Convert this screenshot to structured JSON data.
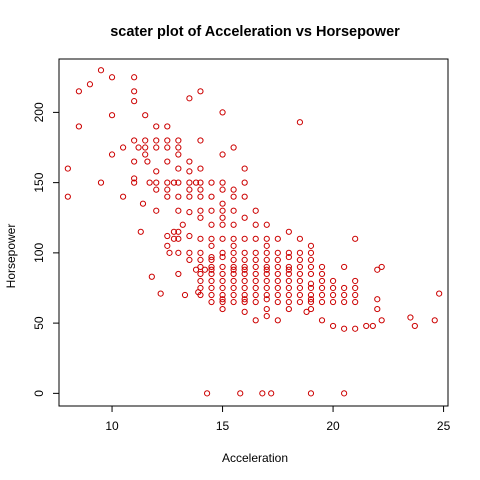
{
  "chart_data": {
    "type": "scatter",
    "title": "scater plot of Acceleration vs Horsepower",
    "xlabel": "Acceleration",
    "ylabel": "Horsepower",
    "xlim": [
      7.6,
      25.2
    ],
    "ylim": [
      -9,
      238
    ],
    "xticks": [
      10,
      15,
      20,
      25
    ],
    "yticks": [
      0,
      50,
      100,
      150,
      200
    ],
    "grid": false,
    "legend": "none",
    "point_color": "#cc0000",
    "series": [
      {
        "points": [
          [
            8,
            160
          ],
          [
            8,
            140
          ],
          [
            8.5,
            215
          ],
          [
            8.5,
            190
          ],
          [
            9,
            220
          ],
          [
            9.5,
            230
          ],
          [
            9.5,
            150
          ],
          [
            10,
            225
          ],
          [
            10,
            198
          ],
          [
            10,
            170
          ],
          [
            10.5,
            175
          ],
          [
            10.5,
            140
          ],
          [
            11,
            225
          ],
          [
            11,
            215
          ],
          [
            11,
            208
          ],
          [
            11,
            180
          ],
          [
            11,
            165
          ],
          [
            11,
            153
          ],
          [
            11,
            150
          ],
          [
            11.2,
            175
          ],
          [
            11.3,
            115
          ],
          [
            11.4,
            135
          ],
          [
            11.5,
            198
          ],
          [
            11.5,
            180
          ],
          [
            11.5,
            175
          ],
          [
            11.5,
            170
          ],
          [
            11.6,
            165
          ],
          [
            11.7,
            150
          ],
          [
            11.8,
            83
          ],
          [
            12,
            190
          ],
          [
            12,
            180
          ],
          [
            12,
            175
          ],
          [
            12,
            158
          ],
          [
            12,
            150
          ],
          [
            12,
            145
          ],
          [
            12,
            130
          ],
          [
            12.2,
            71
          ],
          [
            12.5,
            190
          ],
          [
            12.5,
            180
          ],
          [
            12.5,
            175
          ],
          [
            12.5,
            165
          ],
          [
            12.5,
            150
          ],
          [
            12.5,
            145
          ],
          [
            12.5,
            140
          ],
          [
            12.5,
            112
          ],
          [
            12.5,
            105
          ],
          [
            12.6,
            100
          ],
          [
            12.8,
            150
          ],
          [
            12.8,
            115
          ],
          [
            12.8,
            110
          ],
          [
            13,
            180
          ],
          [
            13,
            175
          ],
          [
            13,
            170
          ],
          [
            13,
            160
          ],
          [
            13,
            150
          ],
          [
            13,
            140
          ],
          [
            13,
            130
          ],
          [
            13,
            115
          ],
          [
            13,
            110
          ],
          [
            13,
            100
          ],
          [
            13,
            85
          ],
          [
            13.2,
            120
          ],
          [
            13.3,
            70
          ],
          [
            13.5,
            210
          ],
          [
            13.5,
            165
          ],
          [
            13.5,
            158
          ],
          [
            13.5,
            150
          ],
          [
            13.5,
            145
          ],
          [
            13.5,
            140
          ],
          [
            13.5,
            129
          ],
          [
            13.5,
            112
          ],
          [
            13.5,
            100
          ],
          [
            13.5,
            95
          ],
          [
            13.8,
            150
          ],
          [
            13.8,
            88
          ],
          [
            13.9,
            72
          ],
          [
            14,
            215
          ],
          [
            14,
            180
          ],
          [
            14,
            160
          ],
          [
            14,
            150
          ],
          [
            14,
            145
          ],
          [
            14,
            140
          ],
          [
            14,
            130
          ],
          [
            14,
            125
          ],
          [
            14,
            110
          ],
          [
            14,
            100
          ],
          [
            14,
            95
          ],
          [
            14,
            90
          ],
          [
            14,
            85
          ],
          [
            14,
            80
          ],
          [
            14,
            75
          ],
          [
            14,
            70
          ],
          [
            14.2,
            88
          ],
          [
            14.3,
            0
          ],
          [
            14.5,
            150
          ],
          [
            14.5,
            140
          ],
          [
            14.5,
            130
          ],
          [
            14.5,
            120
          ],
          [
            14.5,
            110
          ],
          [
            14.5,
            105
          ],
          [
            14.5,
            97
          ],
          [
            14.5,
            95
          ],
          [
            14.5,
            90
          ],
          [
            14.5,
            88
          ],
          [
            14.5,
            85
          ],
          [
            14.5,
            80
          ],
          [
            14.5,
            75
          ],
          [
            14.5,
            70
          ],
          [
            14.5,
            65
          ],
          [
            15,
            200
          ],
          [
            15,
            170
          ],
          [
            15,
            150
          ],
          [
            15,
            145
          ],
          [
            15,
            135
          ],
          [
            15,
            130
          ],
          [
            15,
            125
          ],
          [
            15,
            120
          ],
          [
            15,
            110
          ],
          [
            15,
            100
          ],
          [
            15,
            97
          ],
          [
            15,
            90
          ],
          [
            15,
            85
          ],
          [
            15,
            80
          ],
          [
            15,
            75
          ],
          [
            15,
            70
          ],
          [
            15,
            67
          ],
          [
            15,
            65
          ],
          [
            15,
            60
          ],
          [
            15.5,
            175
          ],
          [
            15.5,
            145
          ],
          [
            15.5,
            140
          ],
          [
            15.5,
            130
          ],
          [
            15.5,
            120
          ],
          [
            15.5,
            110
          ],
          [
            15.5,
            105
          ],
          [
            15.5,
            100
          ],
          [
            15.5,
            95
          ],
          [
            15.5,
            90
          ],
          [
            15.5,
            88
          ],
          [
            15.5,
            85
          ],
          [
            15.5,
            80
          ],
          [
            15.5,
            75
          ],
          [
            15.5,
            70
          ],
          [
            15.5,
            65
          ],
          [
            15.8,
            0
          ],
          [
            16,
            160
          ],
          [
            16,
            150
          ],
          [
            16,
            140
          ],
          [
            16,
            125
          ],
          [
            16,
            110
          ],
          [
            16,
            100
          ],
          [
            16,
            95
          ],
          [
            16,
            90
          ],
          [
            16,
            88
          ],
          [
            16,
            85
          ],
          [
            16,
            80
          ],
          [
            16,
            75
          ],
          [
            16,
            70
          ],
          [
            16,
            67
          ],
          [
            16,
            65
          ],
          [
            16,
            58
          ],
          [
            16.5,
            130
          ],
          [
            16.5,
            120
          ],
          [
            16.5,
            110
          ],
          [
            16.5,
            100
          ],
          [
            16.5,
            95
          ],
          [
            16.5,
            90
          ],
          [
            16.5,
            85
          ],
          [
            16.5,
            80
          ],
          [
            16.5,
            75
          ],
          [
            16.5,
            70
          ],
          [
            16.5,
            65
          ],
          [
            16.5,
            52
          ],
          [
            16.8,
            0
          ],
          [
            17,
            120
          ],
          [
            17,
            110
          ],
          [
            17,
            105
          ],
          [
            17,
            100
          ],
          [
            17,
            95
          ],
          [
            17,
            90
          ],
          [
            17,
            88
          ],
          [
            17,
            85
          ],
          [
            17,
            80
          ],
          [
            17,
            75
          ],
          [
            17,
            70
          ],
          [
            17,
            67
          ],
          [
            17,
            60
          ],
          [
            17,
            55
          ],
          [
            17.2,
            0
          ],
          [
            17.5,
            110
          ],
          [
            17.5,
            100
          ],
          [
            17.5,
            95
          ],
          [
            17.5,
            90
          ],
          [
            17.5,
            85
          ],
          [
            17.5,
            80
          ],
          [
            17.5,
            75
          ],
          [
            17.5,
            70
          ],
          [
            17.5,
            65
          ],
          [
            17.5,
            52
          ],
          [
            18,
            115
          ],
          [
            18,
            100
          ],
          [
            18,
            97
          ],
          [
            18,
            90
          ],
          [
            18,
            88
          ],
          [
            18,
            85
          ],
          [
            18,
            80
          ],
          [
            18,
            75
          ],
          [
            18,
            70
          ],
          [
            18,
            65
          ],
          [
            18,
            60
          ],
          [
            18.5,
            193
          ],
          [
            18.5,
            110
          ],
          [
            18.5,
            100
          ],
          [
            18.5,
            95
          ],
          [
            18.5,
            90
          ],
          [
            18.5,
            85
          ],
          [
            18.5,
            80
          ],
          [
            18.5,
            75
          ],
          [
            18.5,
            70
          ],
          [
            18.5,
            65
          ],
          [
            18.8,
            58
          ],
          [
            19,
            105
          ],
          [
            19,
            100
          ],
          [
            19,
            95
          ],
          [
            19,
            90
          ],
          [
            19,
            85
          ],
          [
            19,
            78
          ],
          [
            19,
            75
          ],
          [
            19,
            70
          ],
          [
            19,
            67
          ],
          [
            19,
            65
          ],
          [
            19,
            60
          ],
          [
            19,
            0
          ],
          [
            19.5,
            90
          ],
          [
            19.5,
            85
          ],
          [
            19.5,
            80
          ],
          [
            19.5,
            75
          ],
          [
            19.5,
            70
          ],
          [
            19.5,
            65
          ],
          [
            19.5,
            52
          ],
          [
            20,
            80
          ],
          [
            20,
            75
          ],
          [
            20,
            70
          ],
          [
            20,
            65
          ],
          [
            20,
            48
          ],
          [
            20.5,
            90
          ],
          [
            20.5,
            75
          ],
          [
            20.5,
            70
          ],
          [
            20.5,
            65
          ],
          [
            20.5,
            46
          ],
          [
            20.5,
            0
          ],
          [
            21,
            110
          ],
          [
            21,
            80
          ],
          [
            21,
            75
          ],
          [
            21,
            70
          ],
          [
            21,
            65
          ],
          [
            21,
            46
          ],
          [
            21.5,
            48
          ],
          [
            21.8,
            48
          ],
          [
            22,
            88
          ],
          [
            22,
            67
          ],
          [
            22,
            60
          ],
          [
            22.2,
            90
          ],
          [
            22.2,
            52
          ],
          [
            23.5,
            54
          ],
          [
            23.7,
            48
          ],
          [
            24.6,
            52
          ],
          [
            24.8,
            71
          ]
        ]
      }
    ]
  }
}
